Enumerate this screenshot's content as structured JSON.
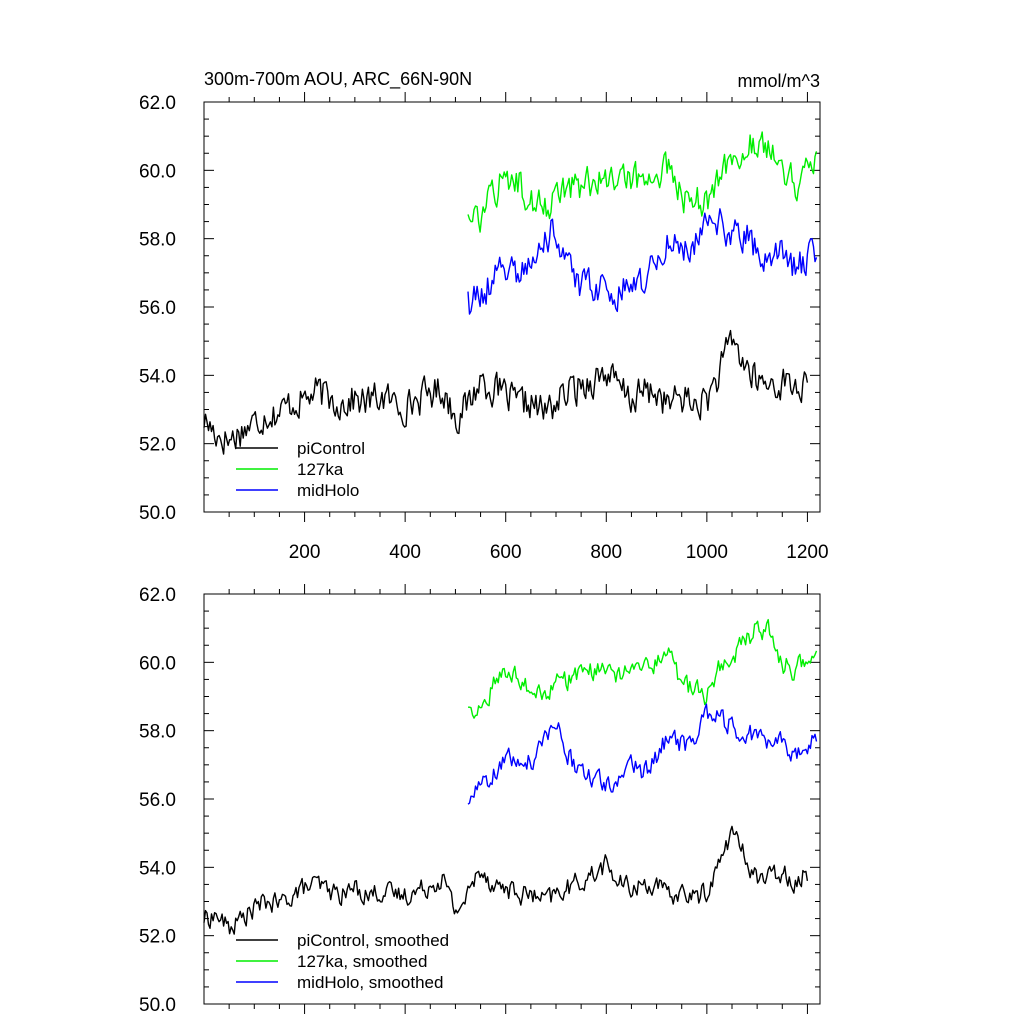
{
  "figure": {
    "title_left": "300m-700m AOU, ARC_66N-90N",
    "title_right": "mmol/m^3"
  },
  "chart_data": [
    {
      "type": "line",
      "title": "300m-700m AOU, ARC_66N-90N",
      "units": "mmol/m^3",
      "xlim": [
        0,
        1225
      ],
      "ylim": [
        50,
        62
      ],
      "x_ticks": [
        200,
        400,
        600,
        800,
        1000,
        1200
      ],
      "x_tick_labels": [
        "200",
        "400",
        "600",
        "800",
        "1000",
        "1200"
      ],
      "y_ticks": [
        50,
        52,
        54,
        56,
        58,
        60,
        62
      ],
      "y_tick_labels": [
        "50.0",
        "52.0",
        "54.0",
        "56.0",
        "58.0",
        "60.0",
        "62.0"
      ],
      "grid": false,
      "legend_position": "bottom-left",
      "series": [
        {
          "name": "piControl",
          "color": "#000000",
          "x_start": 0,
          "x": [
            0,
            25,
            50,
            75,
            100,
            125,
            150,
            175,
            200,
            225,
            250,
            275,
            300,
            325,
            350,
            375,
            400,
            425,
            450,
            475,
            500,
            525,
            550,
            575,
            600,
            625,
            650,
            675,
            700,
            725,
            750,
            775,
            800,
            825,
            850,
            875,
            900,
            925,
            950,
            975,
            1000,
            1025,
            1050,
            1075,
            1100,
            1125,
            1150,
            1175,
            1200
          ],
          "values": [
            52.7,
            52.3,
            52.1,
            52.4,
            52.6,
            52.9,
            52.9,
            53.2,
            53.3,
            53.5,
            53.3,
            53.2,
            53.3,
            53.2,
            53.4,
            53.2,
            53.1,
            53.3,
            53.5,
            53.6,
            52.8,
            53.1,
            53.9,
            53.6,
            53.4,
            53.1,
            53.2,
            52.9,
            53.2,
            53.5,
            53.7,
            53.9,
            54.1,
            53.6,
            53.3,
            53.5,
            53.5,
            53.1,
            53.4,
            53.1,
            53.3,
            54.0,
            55.1,
            54.3,
            53.8,
            53.7,
            53.8,
            53.7,
            53.6
          ]
        },
        {
          "name": "127ka",
          "color": "#00ee00",
          "x": [
            525,
            550,
            575,
            600,
            625,
            650,
            675,
            700,
            725,
            750,
            775,
            800,
            825,
            850,
            875,
            900,
            925,
            950,
            975,
            1000,
            1025,
            1050,
            1075,
            1100,
            1125,
            1150,
            1175,
            1200,
            1220
          ],
          "values": [
            58.6,
            58.5,
            59.2,
            59.8,
            59.6,
            59.2,
            58.9,
            59.3,
            59.5,
            59.6,
            59.7,
            59.9,
            59.5,
            59.8,
            59.6,
            59.9,
            60.3,
            59.1,
            59.2,
            58.9,
            59.8,
            60.2,
            60.5,
            61.0,
            60.8,
            59.9,
            59.6,
            60.1,
            60.4
          ]
        },
        {
          "name": "midHolo",
          "color": "#0000ff",
          "x": [
            525,
            550,
            575,
            600,
            625,
            650,
            675,
            700,
            725,
            750,
            775,
            800,
            825,
            850,
            875,
            900,
            925,
            950,
            975,
            1000,
            1025,
            1050,
            1075,
            1100,
            1125,
            1150,
            1175,
            1200,
            1220
          ],
          "values": [
            56.0,
            56.3,
            56.9,
            57.2,
            57.0,
            57.0,
            57.9,
            58.3,
            57.3,
            56.6,
            56.6,
            56.4,
            56.5,
            57.0,
            56.7,
            57.3,
            57.8,
            57.6,
            57.7,
            58.5,
            58.4,
            58.0,
            58.1,
            57.7,
            57.5,
            57.6,
            57.1,
            57.4,
            57.8
          ]
        }
      ]
    },
    {
      "type": "line",
      "title": "",
      "xlim": [
        0,
        1225
      ],
      "ylim": [
        50,
        62
      ],
      "y_ticks": [
        50,
        52,
        54,
        56,
        58,
        60,
        62
      ],
      "y_tick_labels": [
        "50.0",
        "52.0",
        "54.0",
        "56.0",
        "58.0",
        "60.0",
        "62.0"
      ],
      "grid": false,
      "legend_position": "bottom-left",
      "series": [
        {
          "name": "piControl, smoothed",
          "color": "#000000",
          "x": [
            0,
            25,
            50,
            75,
            100,
            125,
            150,
            175,
            200,
            225,
            250,
            275,
            300,
            325,
            350,
            375,
            400,
            425,
            450,
            475,
            500,
            525,
            550,
            575,
            600,
            625,
            650,
            675,
            700,
            725,
            750,
            775,
            800,
            825,
            850,
            875,
            900,
            925,
            950,
            975,
            1000,
            1025,
            1050,
            1075,
            1100,
            1125,
            1150,
            1175,
            1200
          ],
          "values": [
            52.5,
            52.6,
            52.2,
            52.5,
            52.8,
            53.0,
            52.9,
            53.2,
            53.4,
            53.5,
            53.3,
            53.2,
            53.4,
            53.2,
            53.3,
            53.2,
            53.2,
            53.3,
            53.5,
            53.7,
            52.7,
            53.2,
            54.0,
            53.5,
            53.4,
            53.2,
            53.2,
            53.0,
            53.2,
            53.4,
            53.6,
            53.8,
            54.1,
            53.5,
            53.4,
            53.5,
            53.5,
            53.1,
            53.3,
            53.1,
            53.3,
            54.1,
            55.1,
            54.3,
            53.7,
            53.7,
            53.9,
            53.6,
            53.8
          ]
        },
        {
          "name": "127ka, smoothed",
          "color": "#00ee00",
          "x": [
            525,
            550,
            575,
            600,
            625,
            650,
            675,
            700,
            725,
            750,
            775,
            800,
            825,
            850,
            875,
            900,
            925,
            950,
            975,
            1000,
            1025,
            1050,
            1075,
            1100,
            1125,
            1150,
            1175,
            1200,
            1220
          ],
          "values": [
            58.6,
            58.6,
            59.3,
            59.8,
            59.6,
            59.3,
            59.0,
            59.4,
            59.5,
            59.7,
            59.7,
            59.9,
            59.6,
            59.8,
            59.7,
            60.0,
            60.5,
            59.2,
            59.3,
            59.0,
            59.9,
            60.2,
            60.6,
            61.0,
            60.9,
            60.0,
            59.7,
            60.3,
            60.4
          ]
        },
        {
          "name": "midHolo, smoothed",
          "color": "#0000ff",
          "x": [
            525,
            550,
            575,
            600,
            625,
            650,
            675,
            700,
            725,
            750,
            775,
            800,
            825,
            850,
            875,
            900,
            925,
            950,
            975,
            1000,
            1025,
            1050,
            1075,
            1100,
            1125,
            1150,
            1175,
            1200,
            1220
          ],
          "values": [
            56.1,
            56.3,
            56.8,
            57.2,
            57.0,
            57.1,
            57.8,
            58.4,
            57.3,
            56.7,
            56.6,
            56.4,
            56.5,
            57.0,
            56.8,
            57.3,
            57.9,
            57.6,
            57.7,
            58.5,
            58.4,
            58.1,
            58.0,
            57.8,
            57.6,
            57.7,
            57.2,
            57.4,
            57.9
          ]
        }
      ]
    }
  ]
}
